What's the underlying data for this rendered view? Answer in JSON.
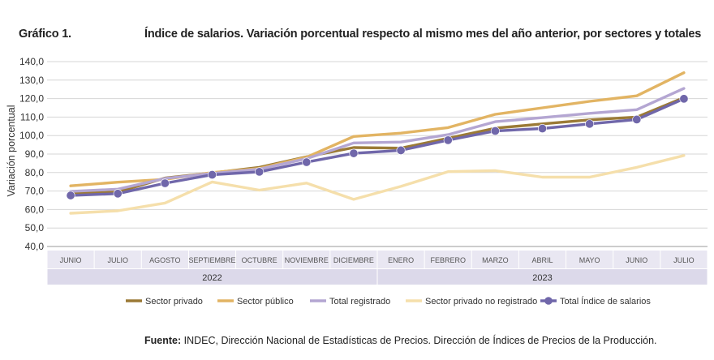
{
  "figure_label": "Gráfico 1.",
  "source_label": "Fuente:",
  "source_text": "INDEC, Dirección Nacional de Estadísticas de Precios. Dirección de Índices de Precios de la Producción.",
  "chart_data": {
    "type": "line",
    "title": "Índice de salarios. Variación porcentual respecto al mismo mes del año anterior, por sectores y totales",
    "ylabel": "Variación porcentual",
    "xlabel": "",
    "ylim": [
      40,
      140
    ],
    "yticks": [
      "40,0",
      "50,0",
      "60,0",
      "70,0",
      "80,0",
      "90,0",
      "100,0",
      "110,0",
      "120,0",
      "130,0",
      "140,0"
    ],
    "grid": true,
    "legend_position": "bottom",
    "categories": [
      "JUNIO",
      "JULIO",
      "AGOSTO",
      "SEPTIEMBRE",
      "OCTUBRE",
      "NOVIEMBRE",
      "DICIEMBRE",
      "ENERO",
      "FEBRERO",
      "MARZO",
      "ABRIL",
      "MAYO",
      "JUNIO",
      "JULIO"
    ],
    "year_groups": [
      {
        "label": "2022",
        "count": 7
      },
      {
        "label": "2023",
        "count": 7
      }
    ],
    "series": [
      {
        "name": "Sector privado",
        "color": "#9b7a36",
        "values": [
          68.5,
          69.5,
          77.0,
          79.8,
          82.8,
          88.5,
          93.5,
          93.2,
          98.5,
          104.0,
          106.3,
          108.5,
          110.0,
          120.5
        ]
      },
      {
        "name": "Sector público",
        "color": "#e2b463",
        "values": [
          72.8,
          74.8,
          76.3,
          80.0,
          82.2,
          88.3,
          99.5,
          101.3,
          104.3,
          111.5,
          115.0,
          118.5,
          121.5,
          134.0
        ]
      },
      {
        "name": "Total registrado",
        "color": "#b4a6d2",
        "values": [
          69.8,
          71.0,
          76.8,
          79.5,
          81.8,
          87.5,
          96.0,
          96.5,
          100.5,
          107.5,
          109.7,
          112.0,
          114.0,
          125.5
        ]
      },
      {
        "name": "Sector privado no registrado",
        "color": "#f5dfab",
        "values": [
          58.0,
          59.3,
          63.5,
          74.9,
          70.5,
          74.3,
          65.5,
          72.5,
          80.5,
          81.0,
          77.5,
          77.5,
          82.8,
          89.2
        ]
      },
      {
        "name": "Total Índice de salarios",
        "color": "#7067aa",
        "markers": true,
        "values": [
          67.6,
          68.6,
          74.2,
          78.8,
          80.4,
          85.6,
          90.4,
          92.0,
          97.5,
          102.5,
          103.8,
          106.3,
          108.7,
          119.9
        ]
      }
    ]
  }
}
